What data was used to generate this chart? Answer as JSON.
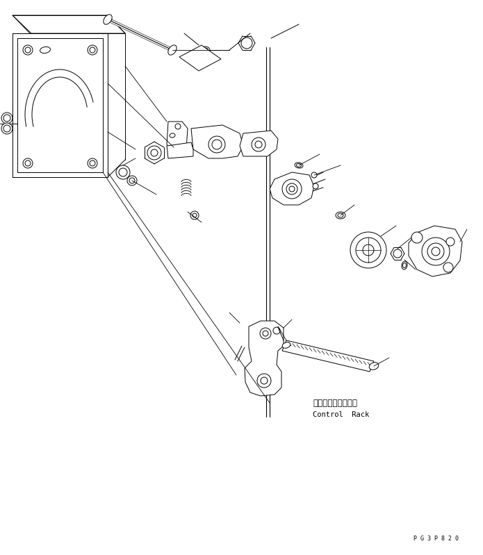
{
  "bg_color": "#ffffff",
  "line_color": "#000000",
  "fig_width": 6.95,
  "fig_height": 7.99,
  "label_jp": "コントロールラック",
  "label_en": "Control  Rack",
  "part_code": "P G 3 P 8 2 0",
  "lw": 0.7
}
